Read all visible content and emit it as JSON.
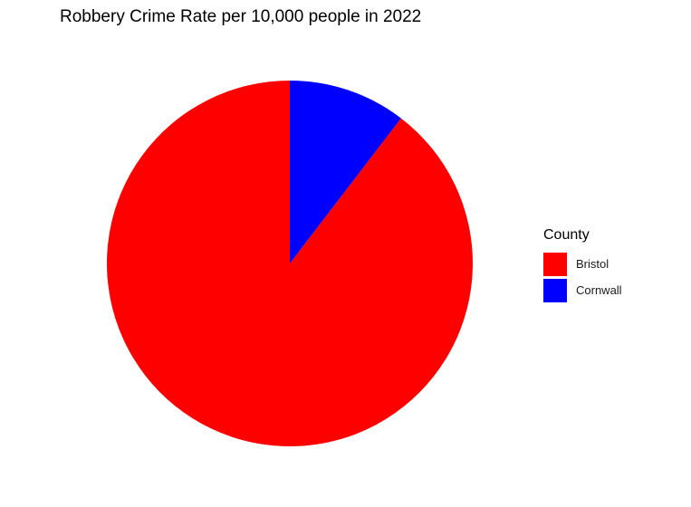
{
  "chart_data": {
    "type": "pie",
    "title": "Robbery Crime Rate per 10,000 people in 2022",
    "categories": [
      "Bristol",
      "Cornwall"
    ],
    "values": [
      89.6,
      10.4
    ],
    "colors": [
      "#ff0000",
      "#0000ff"
    ],
    "start": "top",
    "direction": "counterclockwise",
    "legend": {
      "title": "County",
      "position": "right"
    }
  }
}
